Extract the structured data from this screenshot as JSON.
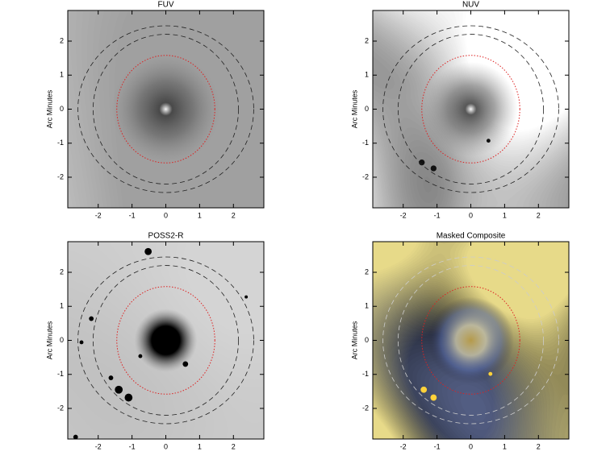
{
  "chart_data": [
    {
      "type": "image",
      "title": "FUV",
      "ylabel": "Arc Minutes",
      "xlim": [
        -2.9,
        2.9
      ],
      "ylim": [
        -2.9,
        2.9
      ],
      "xticks": [
        -2,
        -1,
        0,
        1,
        2
      ],
      "yticks": [
        -2,
        -1,
        0,
        1,
        2
      ]
    },
    {
      "type": "image",
      "title": "NUV",
      "ylabel": "Arc Minutes",
      "xlim": [
        -2.9,
        2.9
      ],
      "ylim": [
        -2.9,
        2.9
      ],
      "xticks": [
        -2,
        -1,
        0,
        1,
        2
      ],
      "yticks": [
        -2,
        -1,
        0,
        1,
        2
      ]
    },
    {
      "type": "image",
      "title": "POSS2-R",
      "ylabel": "Arc Minutes",
      "xlim": [
        -2.9,
        2.9
      ],
      "ylim": [
        -2.9,
        2.9
      ],
      "xticks": [
        -2,
        -1,
        0,
        1,
        2
      ],
      "yticks": [
        -2,
        -1,
        0,
        1,
        2
      ]
    },
    {
      "type": "image",
      "title": "Masked Composite",
      "ylabel": "Arc Minutes",
      "xlim": [
        -2.9,
        2.9
      ],
      "ylim": [
        -2.9,
        2.9
      ],
      "xticks": [
        -2,
        -1,
        0,
        1,
        2
      ],
      "yticks": [
        -2,
        -1,
        0,
        1,
        2
      ]
    }
  ]
}
